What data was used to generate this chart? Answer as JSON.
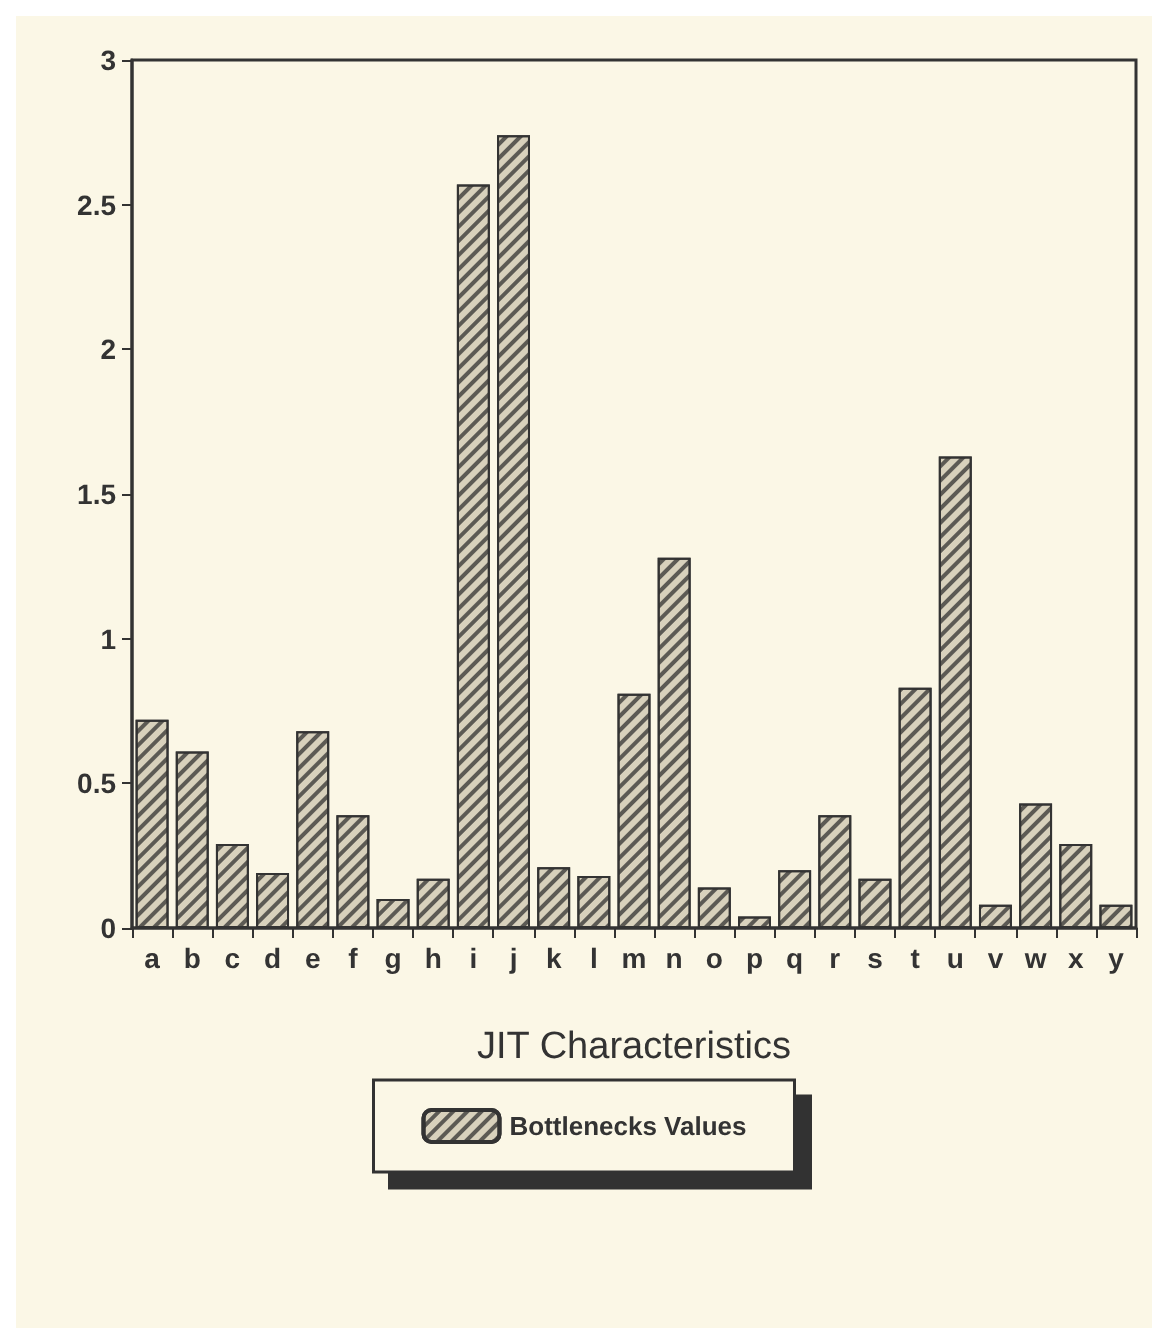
{
  "chart_data": {
    "type": "bar",
    "xlabel": "JIT Characteristics",
    "categories": [
      "a",
      "b",
      "c",
      "d",
      "e",
      "f",
      "g",
      "h",
      "i",
      "j",
      "k",
      "l",
      "m",
      "n",
      "o",
      "p",
      "q",
      "r",
      "s",
      "t",
      "u",
      "v",
      "w",
      "x",
      "y"
    ],
    "series": [
      {
        "name": "Bottlenecks Values",
        "color": "#d8d1bc",
        "values": [
          0.72,
          0.61,
          0.29,
          0.19,
          0.68,
          0.39,
          0.1,
          0.17,
          2.57,
          2.74,
          0.21,
          0.18,
          0.81,
          1.28,
          0.14,
          0.04,
          0.2,
          0.39,
          0.17,
          0.83,
          1.63,
          0.08,
          0.43,
          0.29,
          0.08
        ]
      }
    ],
    "ylim": [
      0,
      3
    ],
    "yticks": [
      0,
      0.5,
      1,
      1.5,
      2,
      2.5,
      3
    ],
    "grid": false,
    "legend": "bottom"
  }
}
